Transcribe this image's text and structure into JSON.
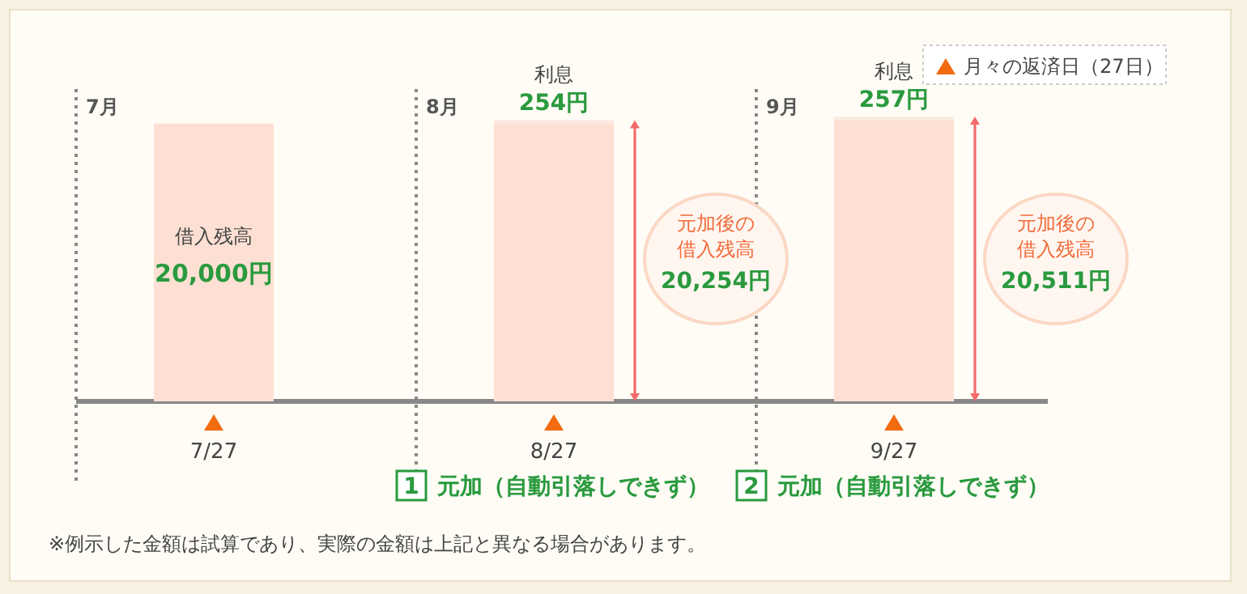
{
  "chart_data": {
    "type": "bar",
    "stacked": true,
    "categories": [
      "7/27",
      "8/27",
      "9/27"
    ],
    "series": [
      {
        "name": "借入残高",
        "color": "#fde0d3",
        "values": [
          20000,
          20000,
          20254
        ],
        "value_labels": [
          "20,000円",
          null,
          null
        ]
      },
      {
        "name": "利息",
        "color": "#fbe9e0",
        "values": [
          null,
          254,
          257
        ],
        "value_labels": [
          null,
          "254円",
          "257円"
        ]
      }
    ],
    "totals": [
      null,
      "20,254円",
      "20,511円"
    ],
    "annotations": [
      "7月",
      "8月",
      "9月",
      "元加後の借入残高",
      "元加後の借入残高",
      "1",
      "元加（自動引落しできず）",
      "2",
      "元加（自動引落しできず）",
      "月々の返済日（27日）",
      "※例示した金額は試算であり、実際の金額は上記と異なる場合があります。"
    ]
  }
}
